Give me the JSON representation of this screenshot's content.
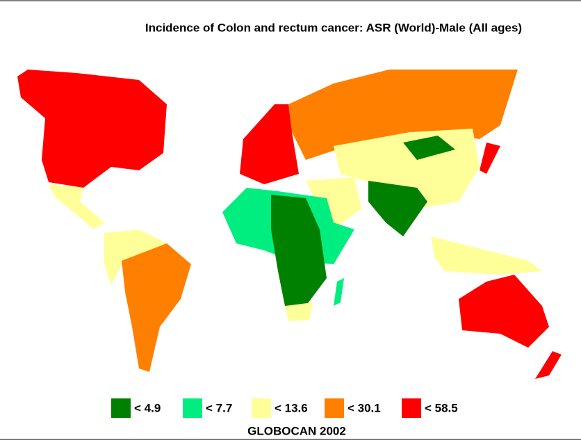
{
  "title": "Incidence of Colon and rectum cancer: ASR (World)-Male (All ages)",
  "legend": {
    "items": [
      {
        "label": "< 4.9",
        "color": "#008000"
      },
      {
        "label": "< 7.7",
        "color": "#00ee80"
      },
      {
        "label": "< 13.6",
        "color": "#ffff99"
      },
      {
        "label": "< 30.1",
        "color": "#ff8000"
      },
      {
        "label": "< 58.5",
        "color": "#ff0000"
      }
    ]
  },
  "footer": "GLOBOCAN 2002"
}
